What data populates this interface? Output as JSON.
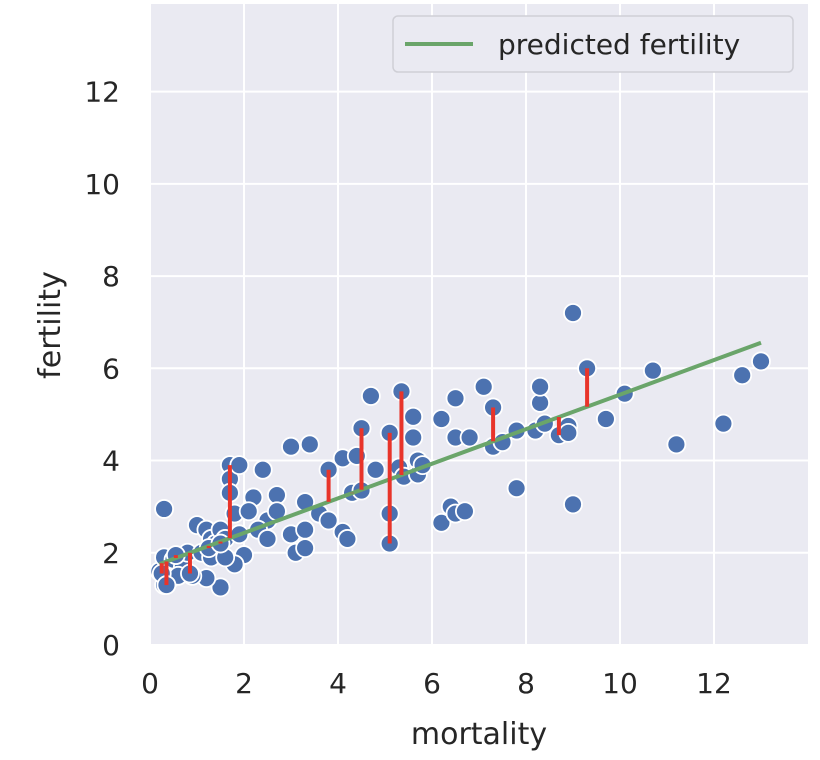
{
  "chart_data": {
    "type": "scatter",
    "xlabel": "mortality",
    "ylabel": "fertility",
    "xlim": [
      0,
      14
    ],
    "ylim": [
      0,
      13.9
    ],
    "xticks": [
      0,
      2,
      4,
      6,
      8,
      10,
      12
    ],
    "yticks": [
      0,
      2,
      4,
      6,
      8,
      10,
      12
    ],
    "grid": true,
    "legend_position": "top-right",
    "colors": {
      "points": "#4c72b0",
      "line": "#6aa56a",
      "residual": "#e8342a",
      "background": "#eaeaf2"
    },
    "points": [
      [
        0.3,
        2.95
      ],
      [
        1.7,
        3.9
      ],
      [
        1.7,
        3.6
      ],
      [
        1.7,
        3.3
      ],
      [
        1.9,
        3.9
      ],
      [
        2.4,
        3.8
      ],
      [
        3.0,
        4.3
      ],
      [
        3.4,
        4.35
      ],
      [
        2.2,
        3.2
      ],
      [
        2.7,
        3.25
      ],
      [
        2.5,
        2.7
      ],
      [
        2.7,
        2.9
      ],
      [
        1.8,
        2.85
      ],
      [
        2.1,
        2.9
      ],
      [
        2.3,
        2.5
      ],
      [
        2.5,
        2.3
      ],
      [
        2.0,
        1.95
      ],
      [
        1.8,
        1.75
      ],
      [
        1.5,
        1.25
      ],
      [
        1.2,
        1.45
      ],
      [
        0.9,
        1.5
      ],
      [
        0.3,
        1.3
      ],
      [
        0.4,
        1.4
      ],
      [
        0.2,
        1.6
      ],
      [
        0.3,
        1.9
      ],
      [
        0.5,
        1.85
      ],
      [
        0.7,
        1.7
      ],
      [
        0.8,
        2.0
      ],
      [
        1.0,
        2.6
      ],
      [
        1.2,
        2.5
      ],
      [
        1.3,
        2.3
      ],
      [
        1.4,
        2.2
      ],
      [
        1.5,
        2.5
      ],
      [
        1.6,
        2.3
      ],
      [
        1.9,
        2.4
      ],
      [
        1.1,
        2.0
      ],
      [
        1.3,
        1.9
      ],
      [
        1.6,
        1.9
      ],
      [
        0.6,
        1.5
      ],
      [
        0.25,
        1.55
      ],
      [
        0.35,
        1.3
      ],
      [
        0.55,
        1.95
      ],
      [
        0.85,
        1.55
      ],
      [
        1.25,
        2.1
      ],
      [
        1.5,
        2.2
      ],
      [
        3.0,
        2.4
      ],
      [
        3.1,
        2.0
      ],
      [
        3.3,
        2.1
      ],
      [
        3.3,
        2.5
      ],
      [
        3.3,
        3.1
      ],
      [
        3.6,
        2.85
      ],
      [
        3.8,
        2.7
      ],
      [
        3.8,
        3.8
      ],
      [
        4.1,
        2.45
      ],
      [
        4.2,
        2.3
      ],
      [
        4.1,
        4.05
      ],
      [
        4.3,
        3.3
      ],
      [
        4.4,
        4.1
      ],
      [
        4.5,
        3.35
      ],
      [
        4.5,
        4.7
      ],
      [
        4.7,
        5.4
      ],
      [
        4.8,
        3.8
      ],
      [
        5.1,
        4.6
      ],
      [
        5.1,
        2.85
      ],
      [
        5.1,
        2.2
      ],
      [
        5.3,
        3.85
      ],
      [
        5.35,
        5.5
      ],
      [
        5.4,
        3.65
      ],
      [
        5.6,
        4.95
      ],
      [
        5.6,
        4.5
      ],
      [
        5.7,
        4.0
      ],
      [
        5.7,
        3.7
      ],
      [
        5.8,
        3.9
      ],
      [
        6.2,
        4.9
      ],
      [
        6.2,
        2.65
      ],
      [
        6.4,
        3.0
      ],
      [
        6.5,
        2.85
      ],
      [
        6.5,
        4.5
      ],
      [
        6.5,
        5.35
      ],
      [
        6.7,
        2.9
      ],
      [
        6.8,
        4.5
      ],
      [
        7.1,
        5.6
      ],
      [
        7.3,
        5.15
      ],
      [
        7.3,
        4.3
      ],
      [
        7.5,
        4.4
      ],
      [
        7.8,
        4.65
      ],
      [
        7.8,
        3.4
      ],
      [
        8.2,
        4.65
      ],
      [
        8.3,
        5.25
      ],
      [
        8.3,
        5.6
      ],
      [
        8.4,
        4.8
      ],
      [
        8.7,
        4.55
      ],
      [
        8.9,
        4.75
      ],
      [
        8.9,
        4.6
      ],
      [
        9.0,
        3.05
      ],
      [
        9.0,
        7.2
      ],
      [
        9.3,
        6.0
      ],
      [
        9.7,
        4.9
      ],
      [
        10.1,
        5.45
      ],
      [
        10.7,
        5.95
      ],
      [
        11.2,
        4.35
      ],
      [
        12.2,
        4.8
      ],
      [
        12.6,
        5.85
      ],
      [
        13.0,
        6.15
      ]
    ],
    "series": [
      {
        "name": "predicted fertility",
        "type": "line",
        "intercept": 1.68,
        "slope": 0.375,
        "x_range": [
          0.2,
          13.0
        ]
      }
    ],
    "residuals": [
      [
        0.25,
        1.55
      ],
      [
        0.35,
        1.3
      ],
      [
        0.55,
        1.95
      ],
      [
        0.85,
        1.55
      ],
      [
        1.25,
        2.1
      ],
      [
        1.5,
        2.2
      ],
      [
        1.7,
        3.9
      ],
      [
        3.8,
        3.8
      ],
      [
        4.3,
        3.3
      ],
      [
        4.5,
        4.7
      ],
      [
        5.1,
        2.2
      ],
      [
        5.1,
        4.6
      ],
      [
        5.35,
        5.5
      ],
      [
        7.3,
        5.15
      ],
      [
        8.7,
        4.55
      ],
      [
        9.3,
        6.0
      ]
    ]
  }
}
